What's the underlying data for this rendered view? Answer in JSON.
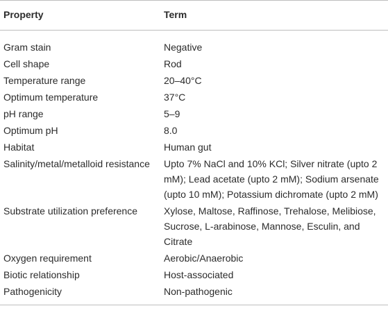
{
  "table": {
    "headers": {
      "property": "Property",
      "term": "Term"
    },
    "rows": [
      {
        "property": "Gram stain",
        "term": "Negative"
      },
      {
        "property": "Cell shape",
        "term": "Rod"
      },
      {
        "property": "Temperature range",
        "term": "20–40°C"
      },
      {
        "property": "Optimum temperature",
        "term": "37°C"
      },
      {
        "property": "pH range",
        "term": "5–9"
      },
      {
        "property": "Optimum pH",
        "term": "8.0"
      },
      {
        "property": "Habitat",
        "term": "Human gut"
      },
      {
        "property": "Salinity/metal/metalloid resistance",
        "term": "Upto 7% NaCl and 10% KCl; Silver nitrate (upto 2 mM); Lead acetate (upto 2 mM); Sodium arsenate (upto 10 mM); Potassium dichromate (upto 2 mM)"
      },
      {
        "property": "Substrate utilization preference",
        "term": "Xylose, Maltose, Raffinose, Trehalose, Melibiose, Sucrose, L-arabinose, Mannose, Esculin, and Citrate"
      },
      {
        "property": "Oxygen requirement",
        "term": "Aerobic/Anaerobic"
      },
      {
        "property": "Biotic relationship",
        "term": "Host-associated"
      },
      {
        "property": "Pathogenicity",
        "term": "Non-pathogenic"
      }
    ]
  }
}
